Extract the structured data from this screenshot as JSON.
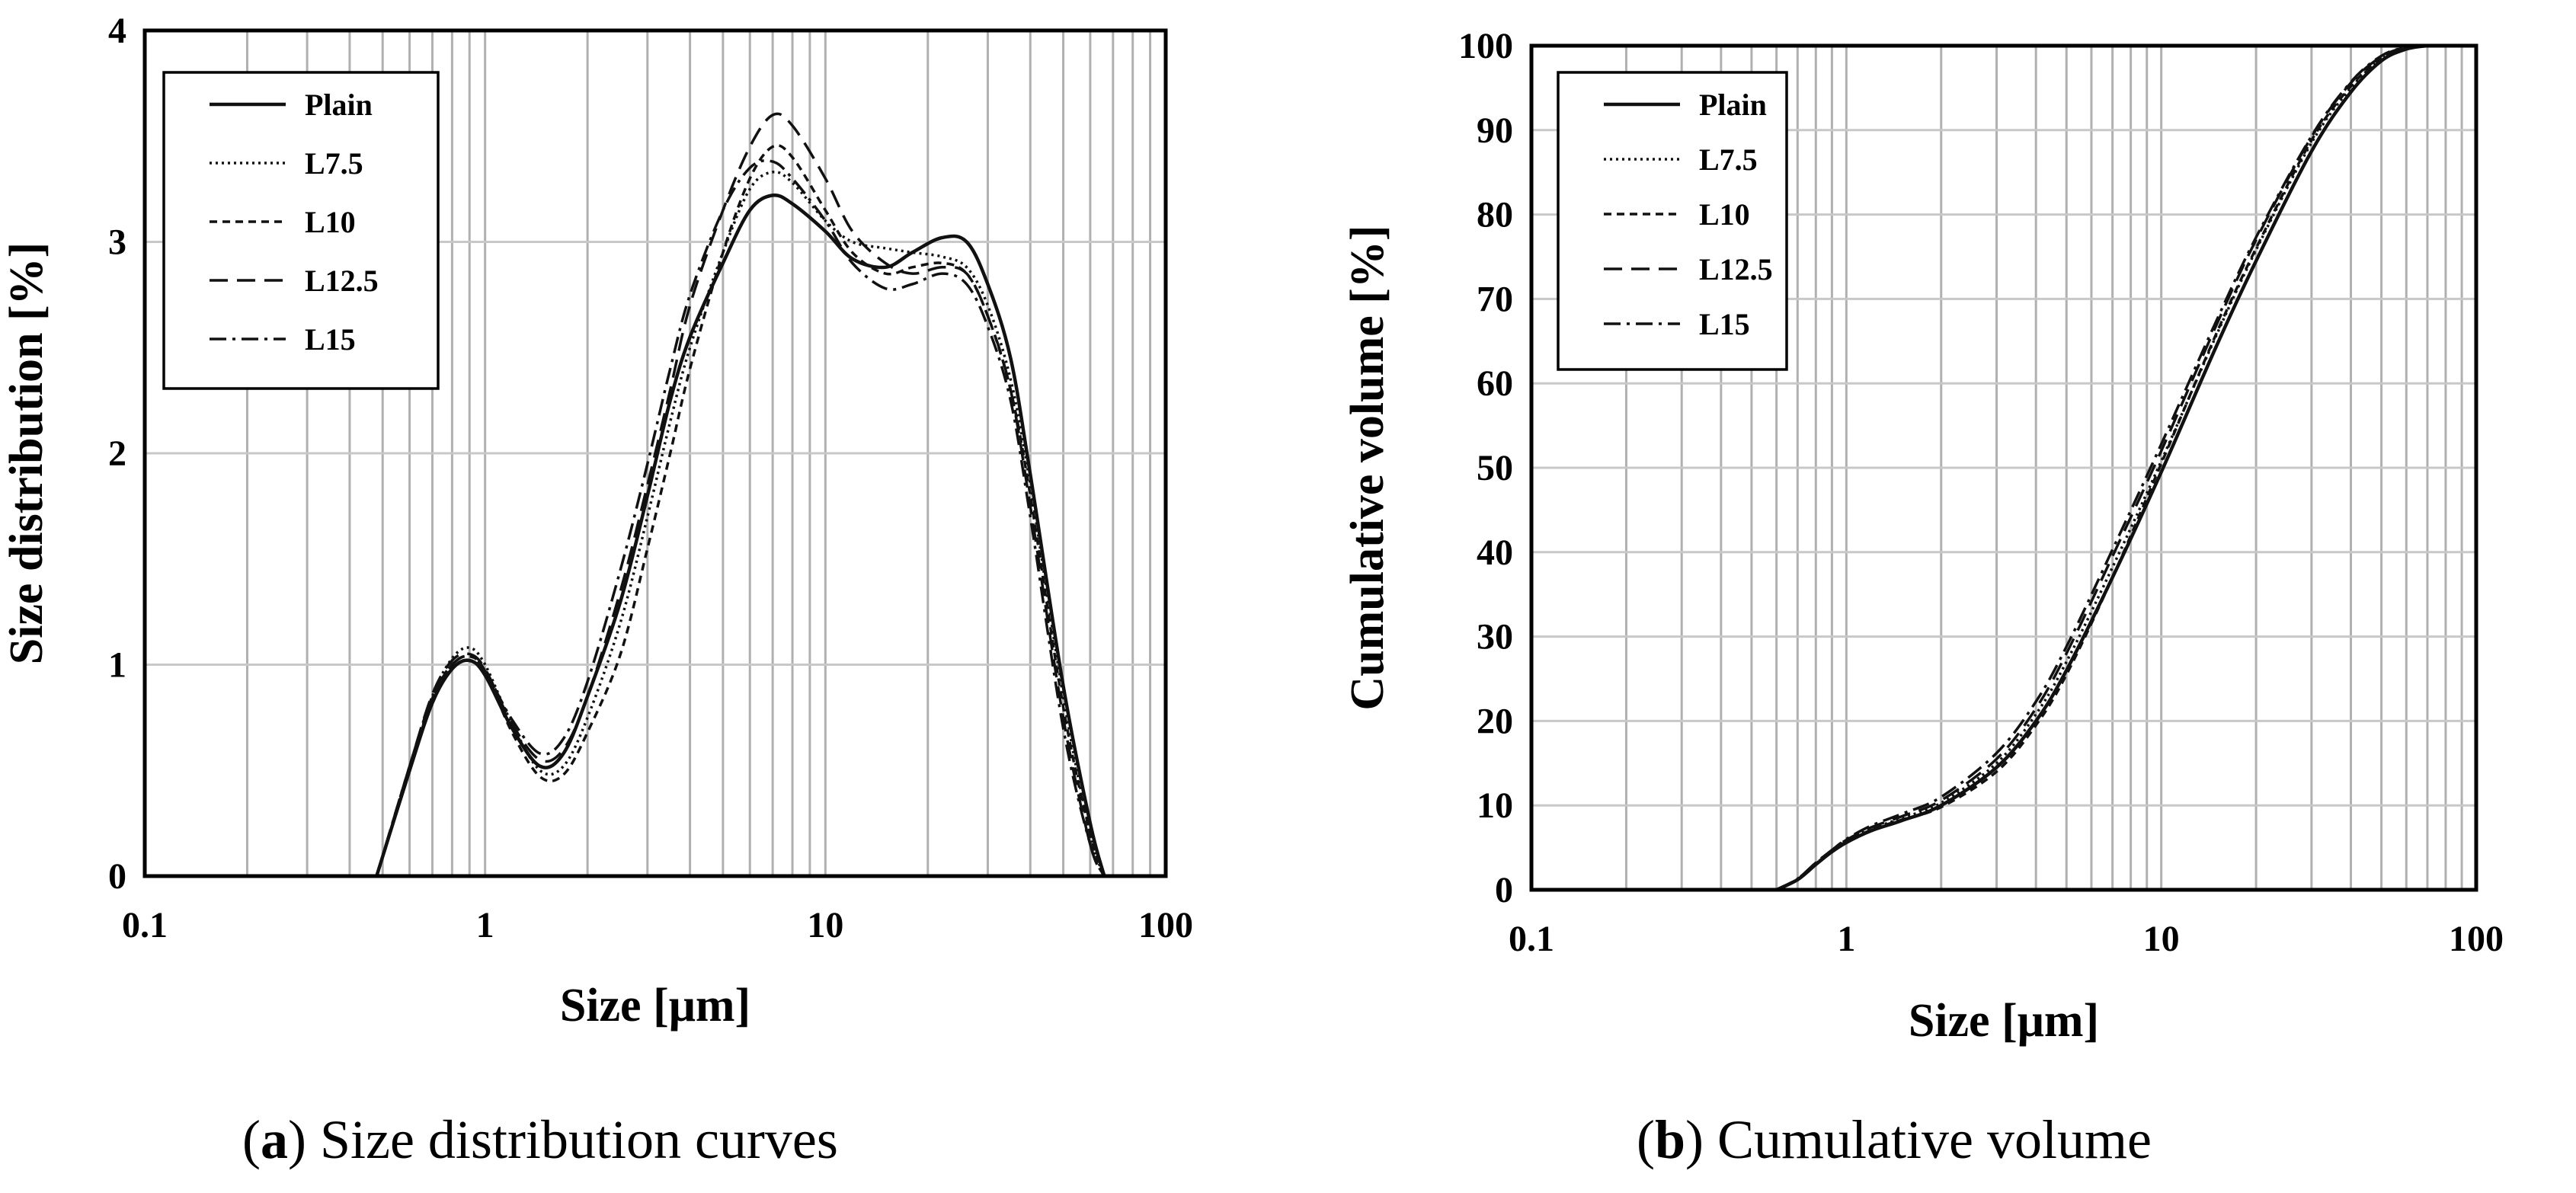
{
  "captions": {
    "a": {
      "letter": "a",
      "text": "Size distribution curves"
    },
    "b": {
      "letter": "b",
      "text": "Cumulative volume"
    }
  },
  "chart_data": [
    {
      "id": "a",
      "type": "line",
      "xscale": "log",
      "title": "",
      "xlabel": "Size [μm]",
      "ylabel": "Size distribution [%]",
      "xlim": [
        0.1,
        100
      ],
      "ylim": [
        0,
        4
      ],
      "x_ticks": [
        0.1,
        1,
        10,
        100
      ],
      "x_tick_labels": [
        "0.1",
        "1",
        "10",
        "100"
      ],
      "y_ticks": [
        0,
        1,
        2,
        3,
        4
      ],
      "y_tick_labels": [
        "0",
        "1",
        "2",
        "3",
        "4"
      ],
      "grid": true,
      "legend": "top-left",
      "series": [
        {
          "name": "Plain",
          "dash": "solid",
          "x": [
            0.48,
            0.6,
            0.7,
            0.8,
            0.9,
            1.0,
            1.2,
            1.45,
            1.7,
            2.0,
            2.5,
            3.0,
            3.5,
            4.0,
            5.0,
            6.0,
            7.0,
            8.0,
            10,
            12,
            15,
            18,
            22,
            26,
            30,
            35,
            40,
            50,
            60,
            66
          ],
          "y": [
            0,
            0.5,
            0.82,
            0.98,
            1.02,
            0.95,
            0.7,
            0.52,
            0.58,
            0.85,
            1.3,
            1.8,
            2.25,
            2.55,
            2.9,
            3.15,
            3.22,
            3.18,
            3.05,
            2.92,
            2.88,
            2.95,
            3.02,
            3.0,
            2.8,
            2.45,
            1.9,
            0.9,
            0.25,
            0
          ]
        },
        {
          "name": "L7.5",
          "dash": "dotted",
          "x": [
            0.48,
            0.6,
            0.7,
            0.8,
            0.9,
            1.0,
            1.2,
            1.45,
            1.7,
            2.0,
            2.5,
            3.0,
            3.5,
            4.0,
            5.0,
            6.0,
            7.0,
            8.0,
            10,
            12,
            15,
            18,
            22,
            26,
            30,
            35,
            40,
            50,
            60,
            66
          ],
          "y": [
            0,
            0.5,
            0.85,
            1.03,
            1.08,
            1.0,
            0.72,
            0.5,
            0.52,
            0.75,
            1.2,
            1.7,
            2.15,
            2.5,
            2.95,
            3.25,
            3.33,
            3.28,
            3.1,
            3.0,
            2.97,
            2.95,
            2.93,
            2.88,
            2.7,
            2.35,
            1.85,
            0.85,
            0.2,
            0
          ]
        },
        {
          "name": "L10",
          "dash": "short-dash",
          "x": [
            0.48,
            0.6,
            0.7,
            0.8,
            0.9,
            1.0,
            1.2,
            1.45,
            1.7,
            2.0,
            2.5,
            3.0,
            3.5,
            4.0,
            5.0,
            6.0,
            7.0,
            8.0,
            10,
            12,
            15,
            18,
            22,
            26,
            30,
            35,
            40,
            50,
            60,
            66
          ],
          "y": [
            0,
            0.5,
            0.84,
            1.0,
            1.04,
            0.97,
            0.68,
            0.47,
            0.48,
            0.68,
            1.05,
            1.55,
            2.0,
            2.4,
            2.95,
            3.3,
            3.45,
            3.4,
            3.15,
            2.95,
            2.85,
            2.88,
            2.9,
            2.85,
            2.65,
            2.3,
            1.8,
            0.8,
            0.2,
            0
          ]
        },
        {
          "name": "L12.5",
          "dash": "long-dash",
          "x": [
            0.48,
            0.6,
            0.7,
            0.8,
            0.9,
            1.0,
            1.2,
            1.45,
            1.7,
            2.0,
            2.5,
            3.0,
            3.5,
            4.0,
            5.0,
            6.0,
            7.0,
            8.0,
            10,
            12,
            15,
            18,
            22,
            26,
            30,
            35,
            40,
            50,
            60,
            66
          ],
          "y": [
            0,
            0.52,
            0.86,
            1.02,
            1.05,
            0.98,
            0.72,
            0.55,
            0.6,
            0.85,
            1.35,
            1.85,
            2.3,
            2.7,
            3.15,
            3.45,
            3.6,
            3.55,
            3.3,
            3.05,
            2.9,
            2.85,
            2.88,
            2.85,
            2.65,
            2.3,
            1.75,
            0.75,
            0.15,
            0
          ]
        },
        {
          "name": "L15",
          "dash": "dash-dot",
          "x": [
            0.48,
            0.6,
            0.7,
            0.8,
            0.9,
            1.0,
            1.2,
            1.45,
            1.7,
            2.0,
            2.5,
            3.0,
            3.5,
            4.0,
            5.0,
            6.0,
            7.0,
            8.0,
            10,
            12,
            15,
            18,
            22,
            26,
            30,
            35,
            40,
            50,
            60,
            66
          ],
          "y": [
            0,
            0.52,
            0.85,
            1.0,
            1.04,
            0.97,
            0.74,
            0.58,
            0.65,
            0.92,
            1.45,
            1.95,
            2.4,
            2.75,
            3.15,
            3.35,
            3.38,
            3.3,
            3.1,
            2.9,
            2.78,
            2.8,
            2.85,
            2.8,
            2.6,
            2.25,
            1.7,
            0.7,
            0.15,
            0
          ]
        }
      ]
    },
    {
      "id": "b",
      "type": "line",
      "xscale": "log",
      "title": "",
      "xlabel": "Size [μm]",
      "ylabel": "Cumulative volume [%]",
      "xlim": [
        0.1,
        100
      ],
      "ylim": [
        0,
        100
      ],
      "x_ticks": [
        0.1,
        1,
        10,
        100
      ],
      "x_tick_labels": [
        "0.1",
        "1",
        "10",
        "100"
      ],
      "y_ticks": [
        0,
        10,
        20,
        30,
        40,
        50,
        60,
        70,
        80,
        90,
        100
      ],
      "y_tick_labels": [
        "0",
        "10",
        "20",
        "30",
        "40",
        "50",
        "60",
        "70",
        "80",
        "90",
        "100"
      ],
      "grid": true,
      "legend": "top-left",
      "series": [
        {
          "name": "Plain",
          "dash": "solid",
          "x": [
            0.6,
            0.7,
            0.8,
            0.9,
            1.0,
            1.2,
            1.5,
            2.0,
            3.0,
            4.0,
            5.0,
            7.0,
            10,
            15,
            20,
            30,
            40,
            50,
            60,
            70
          ],
          "y": [
            0,
            1.2,
            3.0,
            4.5,
            5.6,
            7.0,
            8.2,
            10.0,
            14.5,
            20.0,
            26.0,
            37.0,
            49.5,
            64.5,
            74.5,
            87.5,
            94.5,
            98.2,
            99.6,
            100
          ]
        },
        {
          "name": "L7.5",
          "dash": "dotted",
          "x": [
            0.6,
            0.7,
            0.8,
            0.9,
            1.0,
            1.2,
            1.5,
            2.0,
            3.0,
            4.0,
            5.0,
            7.0,
            10,
            15,
            20,
            30,
            40,
            50,
            60,
            70
          ],
          "y": [
            0,
            1.2,
            3.1,
            4.6,
            5.8,
            7.2,
            8.5,
            10.3,
            15.0,
            20.8,
            27.0,
            38.2,
            50.8,
            65.8,
            75.8,
            88.5,
            95.0,
            98.4,
            99.7,
            100
          ]
        },
        {
          "name": "L10",
          "dash": "short-dash",
          "x": [
            0.6,
            0.7,
            0.8,
            0.9,
            1.0,
            1.2,
            1.5,
            2.0,
            3.0,
            4.0,
            5.0,
            7.0,
            10,
            15,
            20,
            30,
            40,
            50,
            60,
            70
          ],
          "y": [
            0,
            1.2,
            3.1,
            4.6,
            5.7,
            7.1,
            8.3,
            9.8,
            14.0,
            19.5,
            25.5,
            37.0,
            50.5,
            66.0,
            76.0,
            88.8,
            95.2,
            98.5,
            99.7,
            100
          ]
        },
        {
          "name": "L12.5",
          "dash": "long-dash",
          "x": [
            0.6,
            0.7,
            0.8,
            0.9,
            1.0,
            1.2,
            1.5,
            2.0,
            3.0,
            4.0,
            5.0,
            7.0,
            10,
            15,
            20,
            30,
            40,
            50,
            60,
            70
          ],
          "y": [
            0,
            1.3,
            3.2,
            4.7,
            5.9,
            7.4,
            8.7,
            10.6,
            15.5,
            21.5,
            28.0,
            39.5,
            52.0,
            67.0,
            77.0,
            89.2,
            95.6,
            98.7,
            99.8,
            100
          ]
        },
        {
          "name": "L15",
          "dash": "dash-dot",
          "x": [
            0.6,
            0.7,
            0.8,
            0.9,
            1.0,
            1.2,
            1.5,
            2.0,
            3.0,
            4.0,
            5.0,
            7.0,
            10,
            15,
            20,
            30,
            40,
            50,
            60,
            70
          ],
          "y": [
            0,
            1.3,
            3.2,
            4.7,
            6.0,
            7.6,
            9.0,
            11.0,
            16.2,
            22.3,
            28.8,
            40.3,
            52.8,
            67.5,
            77.3,
            89.3,
            95.7,
            98.8,
            99.8,
            100
          ]
        }
      ]
    }
  ]
}
